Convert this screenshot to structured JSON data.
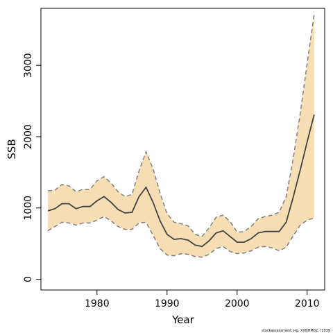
{
  "chart_data": {
    "type": "line",
    "title": "",
    "xlabel": "Year",
    "ylabel": "SSB",
    "xlim": [
      1972,
      2012.5
    ],
    "ylim": [
      -150,
      3800
    ],
    "x_ticks": [
      1980,
      1990,
      2000,
      2010
    ],
    "y_ticks": [
      0,
      1000,
      2000,
      3000
    ],
    "grid": false,
    "legend": "none",
    "colors": {
      "band": "#f5deb3",
      "line": "#404040",
      "bounds": "#7f7f7f"
    },
    "x": [
      1973,
      1974,
      1975,
      1976,
      1977,
      1978,
      1979,
      1980,
      1981,
      1982,
      1983,
      1984,
      1985,
      1986,
      1987,
      1988,
      1989,
      1990,
      1991,
      1992,
      1993,
      1994,
      1995,
      1996,
      1997,
      1998,
      1999,
      2000,
      2001,
      2002,
      2003,
      2004,
      2005,
      2006,
      2007,
      2008,
      2009,
      2010,
      2011
    ],
    "series": [
      {
        "values": [
          960,
          990,
          1060,
          1060,
          990,
          1020,
          1020,
          1100,
          1160,
          1080,
          980,
          930,
          940,
          1160,
          1290,
          1080,
          820,
          630,
          560,
          570,
          550,
          480,
          460,
          540,
          650,
          680,
          600,
          520,
          520,
          570,
          650,
          670,
          670,
          670,
          800,
          1150,
          1530,
          1930,
          2310
        ]
      },
      {
        "values": [
          680,
          740,
          800,
          790,
          760,
          790,
          790,
          830,
          880,
          820,
          740,
          700,
          700,
          790,
          800,
          620,
          430,
          340,
          330,
          360,
          350,
          320,
          310,
          350,
          430,
          460,
          390,
          360,
          370,
          400,
          450,
          460,
          440,
          400,
          450,
          610,
          760,
          830,
          860
        ]
      },
      {
        "values": [
          1240,
          1250,
          1330,
          1310,
          1230,
          1260,
          1260,
          1380,
          1440,
          1350,
          1230,
          1160,
          1190,
          1520,
          1790,
          1550,
          1210,
          920,
          800,
          780,
          750,
          630,
          600,
          720,
          870,
          900,
          810,
          660,
          670,
          740,
          850,
          880,
          900,
          940,
          1160,
          1690,
          2320,
          3030,
          3720
        ]
      }
    ]
  },
  "credit": "stockassessment.org, XXNHM02, r1039"
}
